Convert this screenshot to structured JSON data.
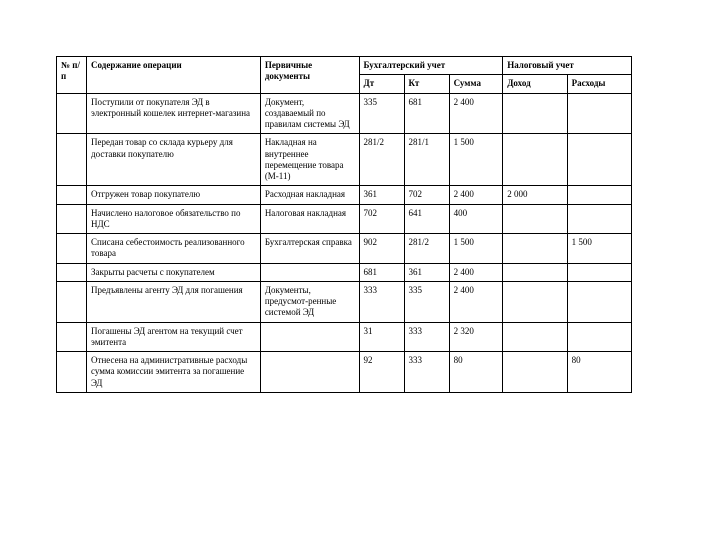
{
  "headers": {
    "col_num": "№ п/п",
    "col_desc": "Содержание операции",
    "col_docs": "Первичные документы",
    "acct_group": "Бухгалтерский учет",
    "col_dt": "Дт",
    "col_kt": "Кт",
    "col_sum": "Сумма",
    "tax_group": "Налоговый учет",
    "col_income": "Доход",
    "col_expense": "Расходы"
  },
  "rows": [
    {
      "num": "",
      "desc": "Поступили от покупателя ЭД в электронный кошелек интернет-магазина",
      "docs": "Документ, создаваемый по правилам системы ЭД",
      "dt": "335",
      "kt": "681",
      "sum": "2 400",
      "income": "",
      "expense": ""
    },
    {
      "num": "",
      "desc": "Передан товар со склада курьеру для доставки покупателю",
      "docs": "Накладная на внутреннее перемещение товара (М-11)",
      "dt": "281/2",
      "kt": "281/1",
      "sum": "1 500",
      "income": "",
      "expense": ""
    },
    {
      "num": "",
      "desc": "Отгружен товар покупателю",
      "docs": "Расходная накладная",
      "dt": "361",
      "kt": "702",
      "sum": "2 400",
      "income": "2 000",
      "expense": ""
    },
    {
      "num": "",
      "desc": "Начислено налоговое обязательство по НДС",
      "docs": "Налоговая накладная",
      "dt": "702",
      "kt": "641",
      "sum": "400",
      "income": "",
      "expense": ""
    },
    {
      "num": "",
      "desc": "Списана себестоимость реализованного товара",
      "docs": "Бухгалтерская справка",
      "dt": "902",
      "kt": "281/2",
      "sum": "1 500",
      "income": "",
      "expense": "1 500"
    },
    {
      "num": "",
      "desc": "Закрыты расчеты с покупателем",
      "docs": "",
      "dt": "681",
      "kt": "361",
      "sum": "2 400",
      "income": "",
      "expense": ""
    },
    {
      "num": "",
      "desc": "Предъявлены агенту ЭД для погашения",
      "docs": "Документы, предусмот-ренные системой ЭД",
      "dt": "333",
      "kt": "335",
      "sum": "2 400",
      "income": "",
      "expense": ""
    },
    {
      "num": "",
      "desc": "Погашены ЭД агентом на текущий счет эмитента",
      "docs": "",
      "dt": "31",
      "kt": "333",
      "sum": "2 320",
      "income": "",
      "expense": ""
    },
    {
      "num": "",
      "desc": "Отнесена на административные расходы сумма комиссии эмитента за погашение ЭД",
      "docs": "",
      "dt": "92",
      "kt": "333",
      "sum": "80",
      "income": "",
      "expense": "80"
    }
  ]
}
